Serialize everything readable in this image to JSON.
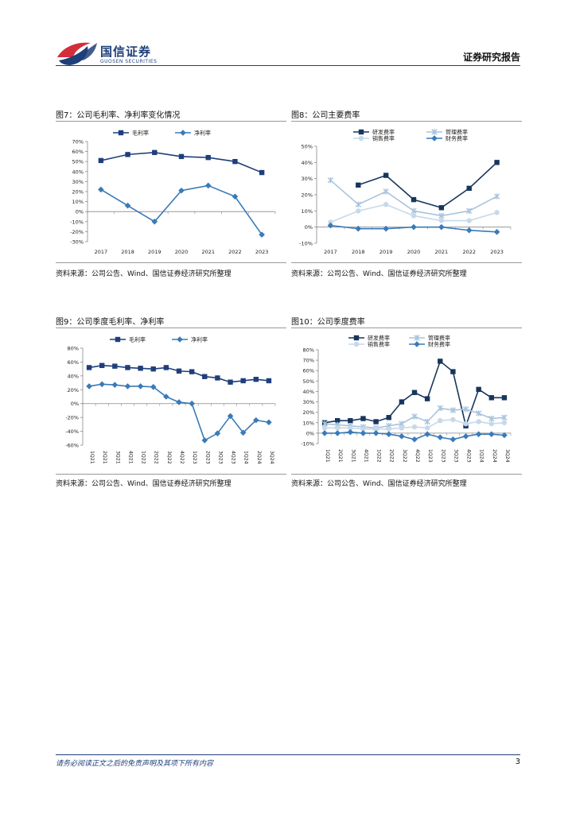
{
  "header": {
    "brand_cn": "国信证券",
    "brand_en": "GUOSEN SECURITIES",
    "report_type": "证券研究报告"
  },
  "footer": {
    "disclaimer": "请务必阅读正文之后的免责声明及其项下所有内容",
    "page_number": "3"
  },
  "colors": {
    "dark": "#1f3f7a",
    "navy": "#17365d",
    "mid": "#3a7ab8",
    "light": "#a9c4dd",
    "lighter": "#c6d9ea"
  },
  "figures": [
    {
      "title": "图7：公司毛利率、净利率变化情况",
      "source": "资料来源：公司公告、Wind、国信证券经济研究所整理"
    },
    {
      "title": "图8：公司主要费率",
      "source": "资料来源：公司公告、Wind、国信证券经济研究所整理"
    },
    {
      "title": "图9：公司季度毛利率、净利率",
      "source": "资料来源：公司公告、Wind、国信证券经济研究所整理"
    },
    {
      "title": "图10：公司季度费率",
      "source": "资料来源：公司公告、Wind、国信证券经济研究所整理"
    }
  ],
  "chart_data": [
    {
      "type": "line",
      "x": [
        "2017",
        "2018",
        "2019",
        "2020",
        "2021",
        "2022",
        "2023"
      ],
      "ylim": [
        -30,
        70
      ],
      "yticks": [
        -30,
        -20,
        -10,
        0,
        10,
        20,
        30,
        40,
        50,
        60,
        70
      ],
      "tick_labels": [
        "-30%",
        "-20%",
        "-10%",
        "0%",
        "10%",
        "20%",
        "30%",
        "40%",
        "50%",
        "60%",
        "70%"
      ],
      "series": [
        {
          "name": "毛利率",
          "marker": "square",
          "color": "#1f3f7a",
          "values": [
            51,
            57,
            59,
            55,
            54,
            50,
            39
          ]
        },
        {
          "name": "净利率",
          "marker": "diamond",
          "color": "#3a7ab8",
          "values": [
            22,
            6,
            -10,
            21,
            26,
            15,
            -23
          ]
        }
      ]
    },
    {
      "type": "line",
      "x": [
        "2017",
        "2018",
        "2019",
        "2020",
        "2021",
        "2022",
        "2023"
      ],
      "ylim": [
        -10,
        50
      ],
      "yticks": [
        -10,
        0,
        10,
        20,
        30,
        40,
        50
      ],
      "tick_labels": [
        "-10%",
        "0%",
        "10%",
        "20%",
        "30%",
        "40%",
        "50%"
      ],
      "series": [
        {
          "name": "研发费率",
          "marker": "square",
          "color": "#17365d",
          "values": [
            null,
            26,
            32,
            17,
            12,
            24,
            40
          ]
        },
        {
          "name": "管理费率",
          "marker": "star",
          "color": "#a9c4dd",
          "values": [
            29,
            14,
            22,
            10,
            7,
            10,
            19
          ]
        },
        {
          "name": "销售费率",
          "marker": "circle",
          "color": "#c6d9ea",
          "values": [
            3,
            10,
            14,
            7,
            4,
            4,
            9
          ]
        },
        {
          "name": "财务费率",
          "marker": "diamond",
          "color": "#3a7ab8",
          "values": [
            1,
            -1,
            -1,
            0,
            0,
            -2,
            -3
          ]
        }
      ]
    },
    {
      "type": "line",
      "x": [
        "1Q21",
        "2Q21",
        "3Q21",
        "4Q21",
        "1Q22",
        "2Q22",
        "3Q22",
        "4Q22",
        "1Q23",
        "2Q23",
        "3Q23",
        "4Q23",
        "1Q24",
        "2Q24",
        "3Q24"
      ],
      "ylim": [
        -60,
        80
      ],
      "yticks": [
        -60,
        -40,
        -20,
        0,
        20,
        40,
        60,
        80
      ],
      "tick_labels": [
        "-60%",
        "-40%",
        "-20%",
        "0%",
        "20%",
        "40%",
        "60%",
        "80%"
      ],
      "series": [
        {
          "name": "毛利率",
          "marker": "square",
          "color": "#1f3f7a",
          "values": [
            52,
            55,
            54,
            52,
            51,
            50,
            52,
            47,
            46,
            39,
            37,
            31,
            33,
            35,
            33
          ]
        },
        {
          "name": "净利率",
          "marker": "diamond",
          "color": "#3a7ab8",
          "values": [
            25,
            28,
            27,
            25,
            25,
            24,
            10,
            2,
            0,
            -53,
            -43,
            -18,
            -42,
            -24,
            -27
          ]
        }
      ]
    },
    {
      "type": "line",
      "x": [
        "1Q21",
        "2Q21",
        "3Q21",
        "4Q21",
        "1Q22",
        "2Q22",
        "3Q22",
        "4Q22",
        "1Q23",
        "2Q23",
        "3Q23",
        "4Q23",
        "1Q24",
        "2Q24",
        "3Q24"
      ],
      "ylim": [
        -10,
        80
      ],
      "yticks": [
        -10,
        0,
        10,
        20,
        30,
        40,
        50,
        60,
        70,
        80
      ],
      "tick_labels": [
        "-10%",
        "0%",
        "10%",
        "20%",
        "30%",
        "40%",
        "50%",
        "60%",
        "70%",
        "80%"
      ],
      "series": [
        {
          "name": "研发费率",
          "marker": "square",
          "color": "#17365d",
          "values": [
            10,
            12,
            12,
            14,
            11,
            15,
            30,
            39,
            33,
            69,
            59,
            7,
            42,
            34,
            34
          ]
        },
        {
          "name": "管理费率",
          "marker": "star",
          "color": "#a9c4dd",
          "values": [
            9,
            8,
            7,
            6,
            5,
            7,
            9,
            16,
            11,
            24,
            22,
            23,
            19,
            14,
            15
          ]
        },
        {
          "name": "销售费率",
          "marker": "circle",
          "color": "#c6d9ea",
          "values": [
            5,
            5,
            5,
            4,
            4,
            4,
            5,
            6,
            5,
            12,
            13,
            9,
            11,
            9,
            10
          ]
        },
        {
          "name": "财务费率",
          "marker": "diamond",
          "color": "#3a7ab8",
          "values": [
            0,
            0,
            1,
            0,
            0,
            -1,
            -3,
            -6,
            -1,
            -4,
            -6,
            -3,
            -1,
            -1,
            -2
          ]
        }
      ]
    }
  ]
}
